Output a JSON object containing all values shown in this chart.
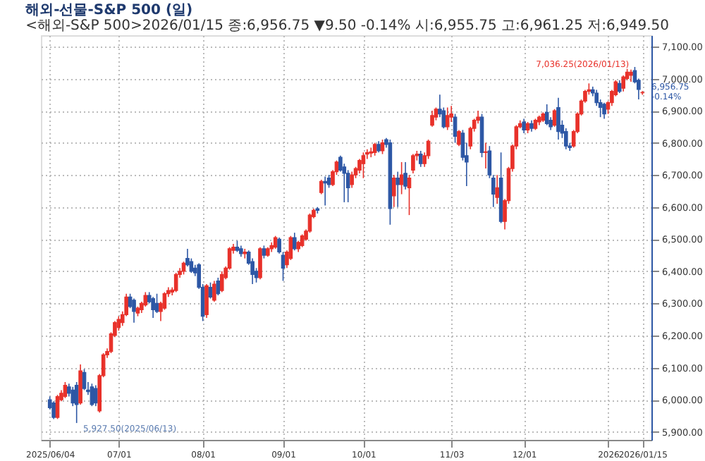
{
  "chart_data": {
    "type": "candlestick",
    "title": "해외-선물-S&P 500 (일)",
    "subtitle": "<해외-S&P 500>2026/01/15 종:6,956.75 ▼9.50 -0.14% 시:6,955.75 고:6,961.25 저:6,949.50",
    "categories": [
      "2025/06/04",
      null,
      null,
      null,
      null,
      null,
      null,
      null,
      null,
      null,
      null,
      null,
      null,
      null,
      null,
      null,
      null,
      null,
      "07/01",
      null,
      null,
      null,
      null,
      null,
      null,
      null,
      null,
      null,
      null,
      null,
      null,
      null,
      null,
      null,
      null,
      null,
      null,
      null,
      null,
      null,
      "08/01",
      null,
      null,
      null,
      null,
      null,
      null,
      null,
      null,
      null,
      null,
      null,
      null,
      null,
      null,
      null,
      null,
      null,
      null,
      null,
      null,
      "09/01",
      null,
      null,
      null,
      null,
      null,
      null,
      null,
      null,
      null,
      null,
      null,
      null,
      null,
      null,
      null,
      null,
      null,
      null,
      null,
      null,
      "10/01",
      null,
      null,
      null,
      null,
      null,
      null,
      null,
      null,
      null,
      null,
      null,
      null,
      null,
      null,
      null,
      null,
      null,
      null,
      null,
      null,
      null,
      null,
      "11/03",
      null,
      null,
      null,
      null,
      null,
      null,
      null,
      null,
      null,
      null,
      null,
      null,
      null,
      null,
      null,
      null,
      null,
      null,
      "12/01",
      null,
      null,
      null,
      null,
      null,
      null,
      null,
      null,
      null,
      null,
      null,
      null,
      null,
      null,
      null,
      null,
      null,
      null,
      null,
      null,
      null,
      "2026",
      null,
      null,
      null,
      null,
      null,
      null,
      null,
      null,
      "2026/01/15"
    ],
    "ohlc": [
      [
        6000,
        6010,
        5970,
        5975
      ],
      [
        5990,
        5995,
        5940,
        5945
      ],
      [
        5945,
        6015,
        5940,
        6010
      ],
      [
        6000,
        6030,
        5995,
        6020
      ],
      [
        6010,
        6055,
        6005,
        6045
      ],
      [
        6040,
        6050,
        6010,
        6020
      ],
      [
        6030,
        6040,
        5980,
        5990
      ],
      [
        6045,
        6055,
        5927.5,
        5985
      ],
      [
        5990,
        6110,
        5985,
        6090
      ],
      [
        6085,
        6095,
        6030,
        6035
      ],
      [
        6030,
        6055,
        6015,
        6025
      ],
      [
        6040,
        6050,
        5980,
        5985
      ],
      [
        6035,
        6045,
        5980,
        5990
      ],
      [
        5965,
        6080,
        5960,
        6075
      ],
      [
        6075,
        6145,
        6070,
        6140
      ],
      [
        6140,
        6160,
        6130,
        6150
      ],
      [
        6150,
        6210,
        6145,
        6205
      ],
      [
        6200,
        6245,
        6195,
        6240
      ],
      [
        6225,
        6260,
        6215,
        6250
      ],
      [
        6240,
        6275,
        6230,
        6265
      ],
      [
        6265,
        6330,
        6260,
        6320
      ],
      [
        6320,
        6330,
        6285,
        6290
      ],
      [
        6310,
        6315,
        6240,
        6275
      ],
      [
        6270,
        6290,
        6260,
        6285
      ],
      [
        6280,
        6305,
        6270,
        6300
      ],
      [
        6295,
        6335,
        6290,
        6325
      ],
      [
        6325,
        6335,
        6300,
        6305
      ],
      [
        6315,
        6320,
        6255,
        6280
      ],
      [
        6300,
        6330,
        6270,
        6275
      ],
      [
        6275,
        6305,
        6245,
        6300
      ],
      [
        6285,
        6335,
        6280,
        6330
      ],
      [
        6330,
        6350,
        6320,
        6340
      ],
      [
        6335,
        6350,
        6325,
        6342
      ],
      [
        6340,
        6395,
        6335,
        6390
      ],
      [
        6390,
        6410,
        6380,
        6400
      ],
      [
        6400,
        6430,
        6390,
        6425
      ],
      [
        6440,
        6470,
        6415,
        6420
      ],
      [
        6430,
        6440,
        6395,
        6400
      ],
      [
        6410,
        6420,
        6385,
        6395
      ],
      [
        6420,
        6425,
        6345,
        6350
      ],
      [
        6350,
        6360,
        6245,
        6260
      ],
      [
        6265,
        6360,
        6255,
        6355
      ],
      [
        6350,
        6365,
        6315,
        6320
      ],
      [
        6310,
        6370,
        6305,
        6360
      ],
      [
        6370,
        6380,
        6325,
        6330
      ],
      [
        6340,
        6400,
        6335,
        6390
      ],
      [
        6380,
        6415,
        6375,
        6410
      ],
      [
        6410,
        6475,
        6405,
        6470
      ],
      [
        6465,
        6485,
        6455,
        6475
      ],
      [
        6475,
        6495,
        6460,
        6465
      ],
      [
        6470,
        6480,
        6445,
        6455
      ],
      [
        6455,
        6470,
        6440,
        6460
      ],
      [
        6460,
        6465,
        6420,
        6425
      ],
      [
        6430,
        6440,
        6360,
        6390
      ],
      [
        6400,
        6410,
        6365,
        6380
      ],
      [
        6380,
        6475,
        6375,
        6470
      ],
      [
        6470,
        6480,
        6440,
        6450
      ],
      [
        6450,
        6475,
        6445,
        6470
      ],
      [
        6470,
        6490,
        6460,
        6480
      ],
      [
        6475,
        6510,
        6470,
        6505
      ],
      [
        6500,
        6505,
        6455,
        6460
      ],
      [
        6450,
        6460,
        6370,
        6410
      ],
      [
        6420,
        6465,
        6410,
        6460
      ],
      [
        6440,
        6510,
        6435,
        6505
      ],
      [
        6505,
        6520,
        6465,
        6470
      ],
      [
        6470,
        6495,
        6460,
        6490
      ],
      [
        6480,
        6515,
        6475,
        6510
      ],
      [
        6500,
        6530,
        6495,
        6525
      ],
      [
        6525,
        6580,
        6520,
        6575
      ],
      [
        6570,
        6595,
        6565,
        6590
      ],
      [
        6595,
        6600,
        6580,
        6590
      ],
      [
        6645,
        6685,
        6640,
        6680
      ],
      [
        6680,
        6695,
        6605,
        6675
      ],
      [
        6690,
        6700,
        6660,
        6670
      ],
      [
        6670,
        6715,
        6665,
        6710
      ],
      [
        6710,
        6745,
        6700,
        6740
      ],
      [
        6755,
        6760,
        6710,
        6715
      ],
      [
        6725,
        6735,
        6615,
        6705
      ],
      [
        6705,
        6715,
        6615,
        6660
      ],
      [
        6670,
        6710,
        6660,
        6700
      ],
      [
        6700,
        6725,
        6690,
        6720
      ],
      [
        6715,
        6750,
        6705,
        6745
      ],
      [
        6735,
        6770,
        6690,
        6760
      ],
      [
        6765,
        6780,
        6750,
        6770
      ],
      [
        6768,
        6785,
        6755,
        6772
      ],
      [
        6770,
        6800,
        6760,
        6795
      ],
      [
        6795,
        6805,
        6770,
        6775
      ],
      [
        6775,
        6810,
        6765,
        6800
      ],
      [
        6810,
        6815,
        6785,
        6795
      ],
      [
        6800,
        6810,
        6545,
        6595
      ],
      [
        6635,
        6700,
        6600,
        6690
      ],
      [
        6690,
        6710,
        6600,
        6670
      ],
      [
        6670,
        6740,
        6640,
        6700
      ],
      [
        6705,
        6740,
        6655,
        6665
      ],
      [
        6660,
        6700,
        6575,
        6690
      ],
      [
        6715,
        6765,
        6705,
        6760
      ],
      [
        6760,
        6775,
        6745,
        6765
      ],
      [
        6765,
        6775,
        6725,
        6735
      ],
      [
        6735,
        6770,
        6725,
        6760
      ],
      [
        6760,
        6810,
        6750,
        6805
      ],
      [
        6855,
        6900,
        6850,
        6885
      ],
      [
        6880,
        6910,
        6870,
        6905
      ],
      [
        6905,
        6950,
        6880,
        6890
      ],
      [
        6900,
        6910,
        6845,
        6850
      ],
      [
        6850,
        6910,
        6840,
        6885
      ],
      [
        6880,
        6915,
        6865,
        6890
      ],
      [
        6880,
        6890,
        6800,
        6820
      ],
      [
        6795,
        6840,
        6790,
        6835
      ],
      [
        6830,
        6840,
        6745,
        6755
      ],
      [
        6760,
        6800,
        6665,
        6740
      ],
      [
        6790,
        6850,
        6780,
        6845
      ],
      [
        6845,
        6875,
        6835,
        6870
      ],
      [
        6870,
        6900,
        6860,
        6880
      ],
      [
        6880,
        6890,
        6755,
        6770
      ],
      [
        6770,
        6800,
        6720,
        6772
      ],
      [
        6775,
        6790,
        6690,
        6700
      ],
      [
        6690,
        6700,
        6600,
        6640
      ],
      [
        6630,
        6700,
        6610,
        6660
      ],
      [
        6690,
        6770,
        6550,
        6555
      ],
      [
        6555,
        6625,
        6530,
        6620
      ],
      [
        6620,
        6725,
        6610,
        6720
      ],
      [
        6720,
        6795,
        6710,
        6790
      ],
      [
        6790,
        6855,
        6780,
        6850
      ],
      [
        6850,
        6870,
        6845,
        6860
      ],
      [
        6865,
        6875,
        6830,
        6840
      ],
      [
        6840,
        6865,
        6830,
        6860
      ],
      [
        6860,
        6870,
        6835,
        6845
      ],
      [
        6845,
        6875,
        6840,
        6870
      ],
      [
        6865,
        6885,
        6855,
        6880
      ],
      [
        6870,
        6895,
        6865,
        6890
      ],
      [
        6895,
        6920,
        6855,
        6860
      ],
      [
        6870,
        6880,
        6840,
        6850
      ],
      [
        6855,
        6905,
        6850,
        6900
      ],
      [
        6910,
        6940,
        6810,
        6835
      ],
      [
        6855,
        6870,
        6815,
        6830
      ],
      [
        6835,
        6845,
        6780,
        6790
      ],
      [
        6790,
        6800,
        6775,
        6785
      ],
      [
        6790,
        6840,
        6785,
        6835
      ],
      [
        6835,
        6895,
        6830,
        6890
      ],
      [
        6890,
        6935,
        6885,
        6930
      ],
      [
        6930,
        6965,
        6925,
        6960
      ],
      [
        6960,
        6985,
        6950,
        6965
      ],
      [
        6965,
        6975,
        6945,
        6955
      ],
      [
        6955,
        6965,
        6915,
        6925
      ],
      [
        6925,
        6935,
        6880,
        6910
      ],
      [
        6920,
        6925,
        6875,
        6890
      ],
      [
        6905,
        6930,
        6890,
        6925
      ],
      [
        6925,
        6965,
        6915,
        6960
      ],
      [
        6950,
        6995,
        6945,
        6990
      ],
      [
        6985,
        6995,
        6955,
        6960
      ],
      [
        6970,
        7010,
        6960,
        7005
      ],
      [
        7000,
        7030,
        6995,
        7020
      ],
      [
        7010,
        7028,
        6990,
        7020
      ],
      [
        7025,
        7036.25,
        6985,
        6990
      ],
      [
        6995,
        7000,
        6935,
        6966.25
      ],
      [
        6955.75,
        6961.25,
        6949.5,
        6956.75
      ]
    ],
    "colors": [
      "#2d57a5",
      "#2d57a5",
      "#e8312a",
      "#e8312a",
      "#e8312a",
      "#2d57a5",
      "#2d57a5",
      "#2d57a5",
      "#e8312a",
      "#2d57a5",
      "#2d57a5",
      "#2d57a5",
      "#2d57a5",
      "#e8312a",
      "#e8312a",
      "#e8312a",
      "#e8312a",
      "#e8312a",
      "#e8312a",
      "#e8312a",
      "#e8312a",
      "#2d57a5",
      "#2d57a5",
      "#e8312a",
      "#e8312a",
      "#e8312a",
      "#2d57a5",
      "#2d57a5",
      "#2d57a5",
      "#e8312a",
      "#e8312a",
      "#e8312a",
      "#e8312a",
      "#e8312a",
      "#e8312a",
      "#e8312a",
      "#2d57a5",
      "#2d57a5",
      "#2d57a5",
      "#2d57a5",
      "#2d57a5",
      "#e8312a",
      "#2d57a5",
      "#e8312a",
      "#2d57a5",
      "#e8312a",
      "#e8312a",
      "#e8312a",
      "#e8312a",
      "#2d57a5",
      "#2d57a5",
      "#e8312a",
      "#2d57a5",
      "#2d57a5",
      "#2d57a5",
      "#e8312a",
      "#2d57a5",
      "#e8312a",
      "#e8312a",
      "#e8312a",
      "#2d57a5",
      "#2d57a5",
      "#e8312a",
      "#e8312a",
      "#2d57a5",
      "#e8312a",
      "#e8312a",
      "#e8312a",
      "#e8312a",
      "#e8312a",
      "#2d57a5",
      "#e8312a",
      "#2d57a5",
      "#2d57a5",
      "#e8312a",
      "#e8312a",
      "#2d57a5",
      "#2d57a5",
      "#2d57a5",
      "#e8312a",
      "#e8312a",
      "#e8312a",
      "#e8312a",
      "#e8312a",
      "#e8312a",
      "#e8312a",
      "#2d57a5",
      "#e8312a",
      "#2d57a5",
      "#2d57a5",
      "#e8312a",
      "#2d57a5",
      "#e8312a",
      "#2d57a5",
      "#e8312a",
      "#e8312a",
      "#e8312a",
      "#2d57a5",
      "#e8312a",
      "#e8312a",
      "#e8312a",
      "#e8312a",
      "#2d57a5",
      "#2d57a5",
      "#e8312a",
      "#e8312a",
      "#2d57a5",
      "#e8312a",
      "#2d57a5",
      "#2d57a5",
      "#e8312a",
      "#e8312a",
      "#e8312a",
      "#2d57a5",
      "#e8312a",
      "#2d57a5",
      "#2d57a5",
      "#e8312a",
      "#2d57a5",
      "#e8312a",
      "#e8312a",
      "#e8312a",
      "#e8312a",
      "#e8312a",
      "#2d57a5",
      "#e8312a",
      "#2d57a5",
      "#e8312a",
      "#e8312a",
      "#e8312a",
      "#2d57a5",
      "#2d57a5",
      "#e8312a",
      "#2d57a5",
      "#2d57a5",
      "#2d57a5",
      "#2d57a5",
      "#e8312a",
      "#e8312a",
      "#e8312a",
      "#e8312a",
      "#e8312a",
      "#2d57a5",
      "#2d57a5",
      "#2d57a5",
      "#2d57a5",
      "#e8312a",
      "#e8312a",
      "#e8312a",
      "#2d57a5",
      "#e8312a",
      "#e8312a",
      "#e8312a",
      "#2d57a5",
      "#2d57a5",
      "#e8312a"
    ],
    "ylim": [
      5875,
      7135
    ],
    "yticks": [
      {
        "value": 5900,
        "label": "5,900.00"
      },
      {
        "value": 6000,
        "label": "6,000.00"
      },
      {
        "value": 6100,
        "label": "6,100.00"
      },
      {
        "value": 6200,
        "label": "6,200.00"
      },
      {
        "value": 6300,
        "label": "6,300.00"
      },
      {
        "value": 6400,
        "label": "6,400.00"
      },
      {
        "value": 6500,
        "label": "6,500.00"
      },
      {
        "value": 6600,
        "label": "6,600.00"
      },
      {
        "value": 6700,
        "label": "6,700.00"
      },
      {
        "value": 6800,
        "label": "6,800.00"
      },
      {
        "value": 6900,
        "label": "6,900.00"
      },
      {
        "value": 7000,
        "label": "7,000.00"
      },
      {
        "value": 7100,
        "label": "7,100.00"
      }
    ],
    "grid": true,
    "annotations": [
      "7,036.25(2026/01/13)",
      "5,927.50(2025/06/13)",
      "6,956.75",
      "-0.14%"
    ]
  }
}
